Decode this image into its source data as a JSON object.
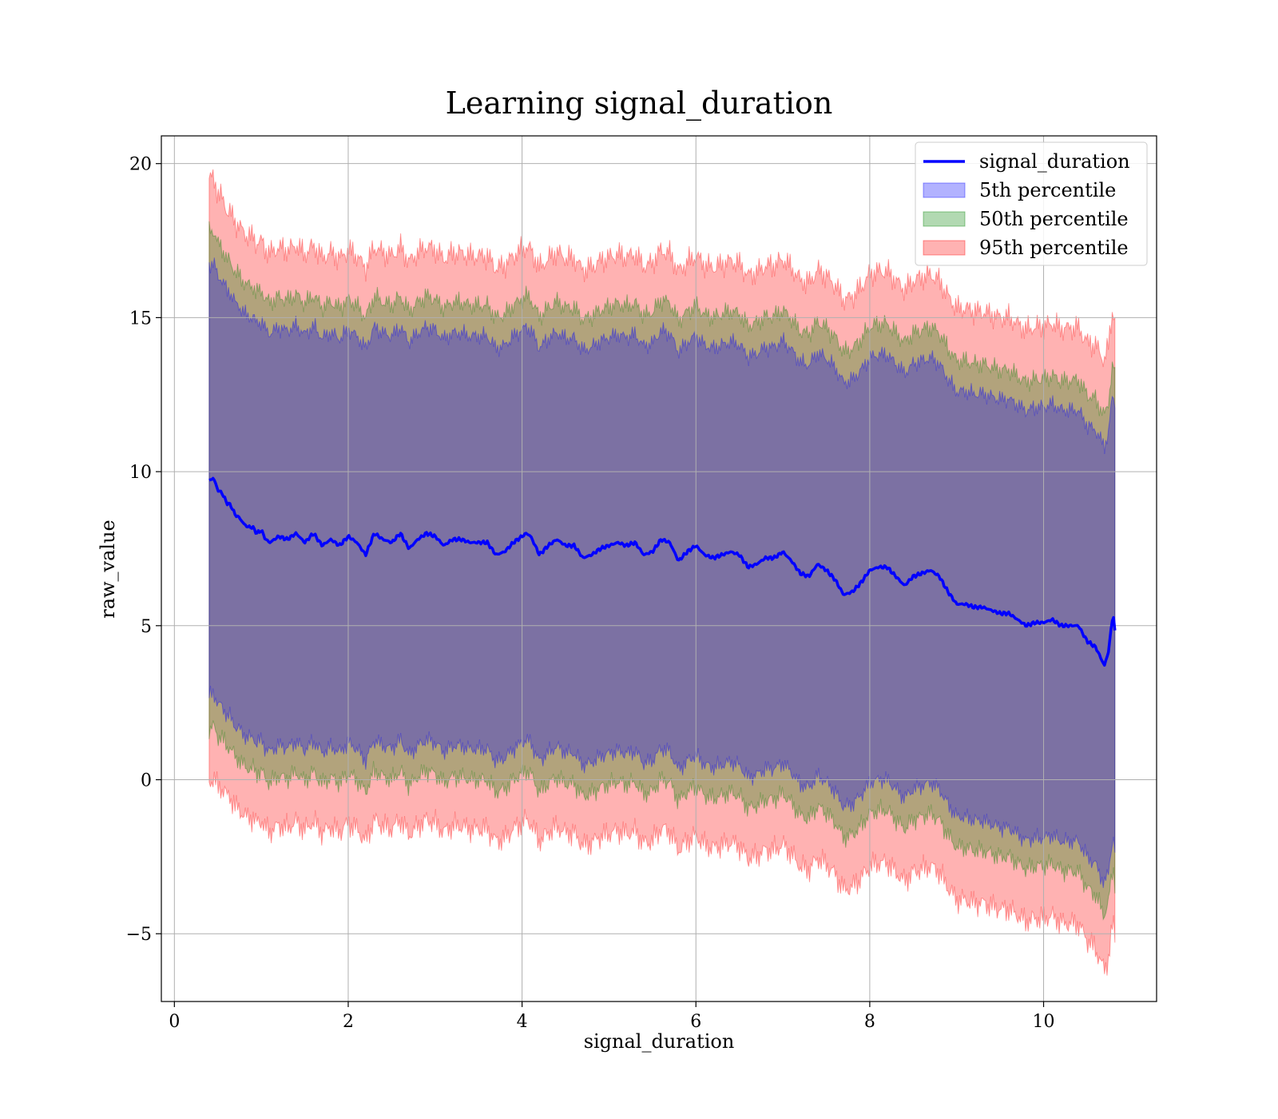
{
  "chart_data": {
    "type": "area",
    "title": "Learning signal_duration",
    "xlabel": "signal_duration",
    "ylabel": "raw_value",
    "xlim": [
      -0.15,
      11.3
    ],
    "ylim": [
      -7.2,
      20.9
    ],
    "xticks": [
      0,
      2,
      4,
      6,
      8,
      10
    ],
    "yticks": [
      -5,
      0,
      5,
      10,
      15,
      20
    ],
    "ytick_labels": [
      "−5",
      "0",
      "5",
      "10",
      "15",
      "20"
    ],
    "grid": true,
    "legend_position": "top-right",
    "x_range": [
      0.4,
      10.82
    ],
    "mean_line": {
      "name": "signal_duration",
      "color": "#0000ff",
      "points": [
        [
          0.4,
          9.7
        ],
        [
          0.45,
          9.8
        ],
        [
          0.5,
          9.4
        ],
        [
          0.55,
          9.3
        ],
        [
          0.6,
          9.0
        ],
        [
          0.65,
          8.9
        ],
        [
          0.7,
          8.6
        ],
        [
          0.75,
          8.5
        ],
        [
          0.8,
          8.3
        ],
        [
          0.85,
          8.2
        ],
        [
          0.9,
          8.2
        ],
        [
          0.95,
          8.0
        ],
        [
          1.0,
          8.1
        ],
        [
          1.05,
          7.8
        ],
        [
          1.1,
          7.7
        ],
        [
          1.2,
          7.9
        ],
        [
          1.3,
          7.8
        ],
        [
          1.4,
          8.0
        ],
        [
          1.5,
          7.7
        ],
        [
          1.6,
          8.0
        ],
        [
          1.7,
          7.6
        ],
        [
          1.8,
          7.8
        ],
        [
          1.9,
          7.6
        ],
        [
          2.0,
          7.9
        ],
        [
          2.1,
          7.7
        ],
        [
          2.2,
          7.3
        ],
        [
          2.3,
          8.0
        ],
        [
          2.4,
          7.8
        ],
        [
          2.5,
          7.7
        ],
        [
          2.6,
          8.0
        ],
        [
          2.7,
          7.5
        ],
        [
          2.8,
          7.8
        ],
        [
          2.9,
          8.0
        ],
        [
          3.0,
          7.9
        ],
        [
          3.1,
          7.6
        ],
        [
          3.2,
          7.8
        ],
        [
          3.3,
          7.8
        ],
        [
          3.4,
          7.7
        ],
        [
          3.5,
          7.7
        ],
        [
          3.6,
          7.7
        ],
        [
          3.7,
          7.3
        ],
        [
          3.8,
          7.4
        ],
        [
          3.9,
          7.7
        ],
        [
          4.0,
          7.9
        ],
        [
          4.05,
          8.0
        ],
        [
          4.1,
          7.9
        ],
        [
          4.2,
          7.3
        ],
        [
          4.3,
          7.6
        ],
        [
          4.4,
          7.8
        ],
        [
          4.5,
          7.6
        ],
        [
          4.6,
          7.6
        ],
        [
          4.7,
          7.2
        ],
        [
          4.8,
          7.3
        ],
        [
          4.9,
          7.5
        ],
        [
          5.0,
          7.6
        ],
        [
          5.1,
          7.7
        ],
        [
          5.2,
          7.6
        ],
        [
          5.3,
          7.7
        ],
        [
          5.4,
          7.3
        ],
        [
          5.5,
          7.4
        ],
        [
          5.6,
          7.8
        ],
        [
          5.7,
          7.7
        ],
        [
          5.8,
          7.1
        ],
        [
          5.9,
          7.4
        ],
        [
          6.0,
          7.6
        ],
        [
          6.1,
          7.3
        ],
        [
          6.2,
          7.2
        ],
        [
          6.3,
          7.3
        ],
        [
          6.4,
          7.4
        ],
        [
          6.5,
          7.3
        ],
        [
          6.6,
          6.9
        ],
        [
          6.7,
          7.0
        ],
        [
          6.8,
          7.2
        ],
        [
          6.9,
          7.2
        ],
        [
          7.0,
          7.4
        ],
        [
          7.1,
          7.1
        ],
        [
          7.2,
          6.7
        ],
        [
          7.3,
          6.6
        ],
        [
          7.4,
          7.0
        ],
        [
          7.5,
          6.8
        ],
        [
          7.6,
          6.5
        ],
        [
          7.7,
          6.0
        ],
        [
          7.8,
          6.1
        ],
        [
          7.9,
          6.4
        ],
        [
          8.0,
          6.8
        ],
        [
          8.1,
          6.9
        ],
        [
          8.2,
          6.9
        ],
        [
          8.3,
          6.6
        ],
        [
          8.4,
          6.3
        ],
        [
          8.5,
          6.6
        ],
        [
          8.6,
          6.7
        ],
        [
          8.7,
          6.8
        ],
        [
          8.8,
          6.6
        ],
        [
          8.9,
          6.1
        ],
        [
          9.0,
          5.7
        ],
        [
          9.1,
          5.7
        ],
        [
          9.2,
          5.6
        ],
        [
          9.3,
          5.6
        ],
        [
          9.4,
          5.5
        ],
        [
          9.5,
          5.4
        ],
        [
          9.6,
          5.4
        ],
        [
          9.7,
          5.2
        ],
        [
          9.8,
          5.0
        ],
        [
          9.9,
          5.1
        ],
        [
          10.0,
          5.1
        ],
        [
          10.1,
          5.2
        ],
        [
          10.2,
          5.0
        ],
        [
          10.3,
          5.0
        ],
        [
          10.4,
          5.0
        ],
        [
          10.5,
          4.5
        ],
        [
          10.6,
          4.3
        ],
        [
          10.7,
          3.7
        ],
        [
          10.75,
          4.2
        ],
        [
          10.78,
          5.0
        ],
        [
          10.8,
          5.4
        ],
        [
          10.82,
          4.8
        ]
      ]
    },
    "series": [
      {
        "name": "95th percentile",
        "fill_color": "#ff0000",
        "fill_opacity": 0.3,
        "halfwidth": {
          "x": [
            0.4,
            0.6,
            1.0,
            2.0,
            4.0,
            6.0,
            8.0,
            9.0,
            10.0,
            10.5,
            10.7,
            10.82
          ],
          "values": [
            9.8,
            9.5,
            9.4,
            9.3,
            9.3,
            9.4,
            9.6,
            9.6,
            9.6,
            9.7,
            9.9,
            10.0
          ]
        },
        "jitter": 0.45
      },
      {
        "name": "50th percentile",
        "fill_color": "#008000",
        "fill_opacity": 0.3,
        "halfwidth": {
          "x": [
            0.4,
            0.6,
            1.0,
            2.0,
            4.0,
            6.0,
            8.0,
            9.0,
            10.0,
            10.5,
            10.7,
            10.82
          ],
          "values": [
            8.1,
            7.9,
            7.8,
            7.7,
            7.7,
            7.8,
            7.9,
            7.9,
            7.9,
            8.0,
            8.1,
            8.2
          ]
        },
        "jitter": 0.35
      },
      {
        "name": "5th percentile",
        "fill_color": "#0000ff",
        "fill_opacity": 0.3,
        "halfwidth": {
          "x": [
            0.4,
            0.6,
            1.0,
            2.0,
            4.0,
            6.0,
            8.0,
            9.0,
            10.0,
            10.5,
            10.7,
            10.82
          ],
          "values": [
            7.0,
            6.9,
            6.8,
            6.7,
            6.7,
            6.8,
            6.9,
            6.9,
            7.0,
            7.0,
            7.1,
            7.2
          ]
        },
        "jitter": 0.3
      }
    ],
    "legend": [
      {
        "label": "signal_duration",
        "kind": "line",
        "color": "#0000ff"
      },
      {
        "label": "5th percentile",
        "kind": "patch",
        "color": "#0000ff"
      },
      {
        "label": "50th percentile",
        "kind": "patch",
        "color": "#008000"
      },
      {
        "label": "95th percentile",
        "kind": "patch",
        "color": "#ff0000"
      }
    ]
  }
}
